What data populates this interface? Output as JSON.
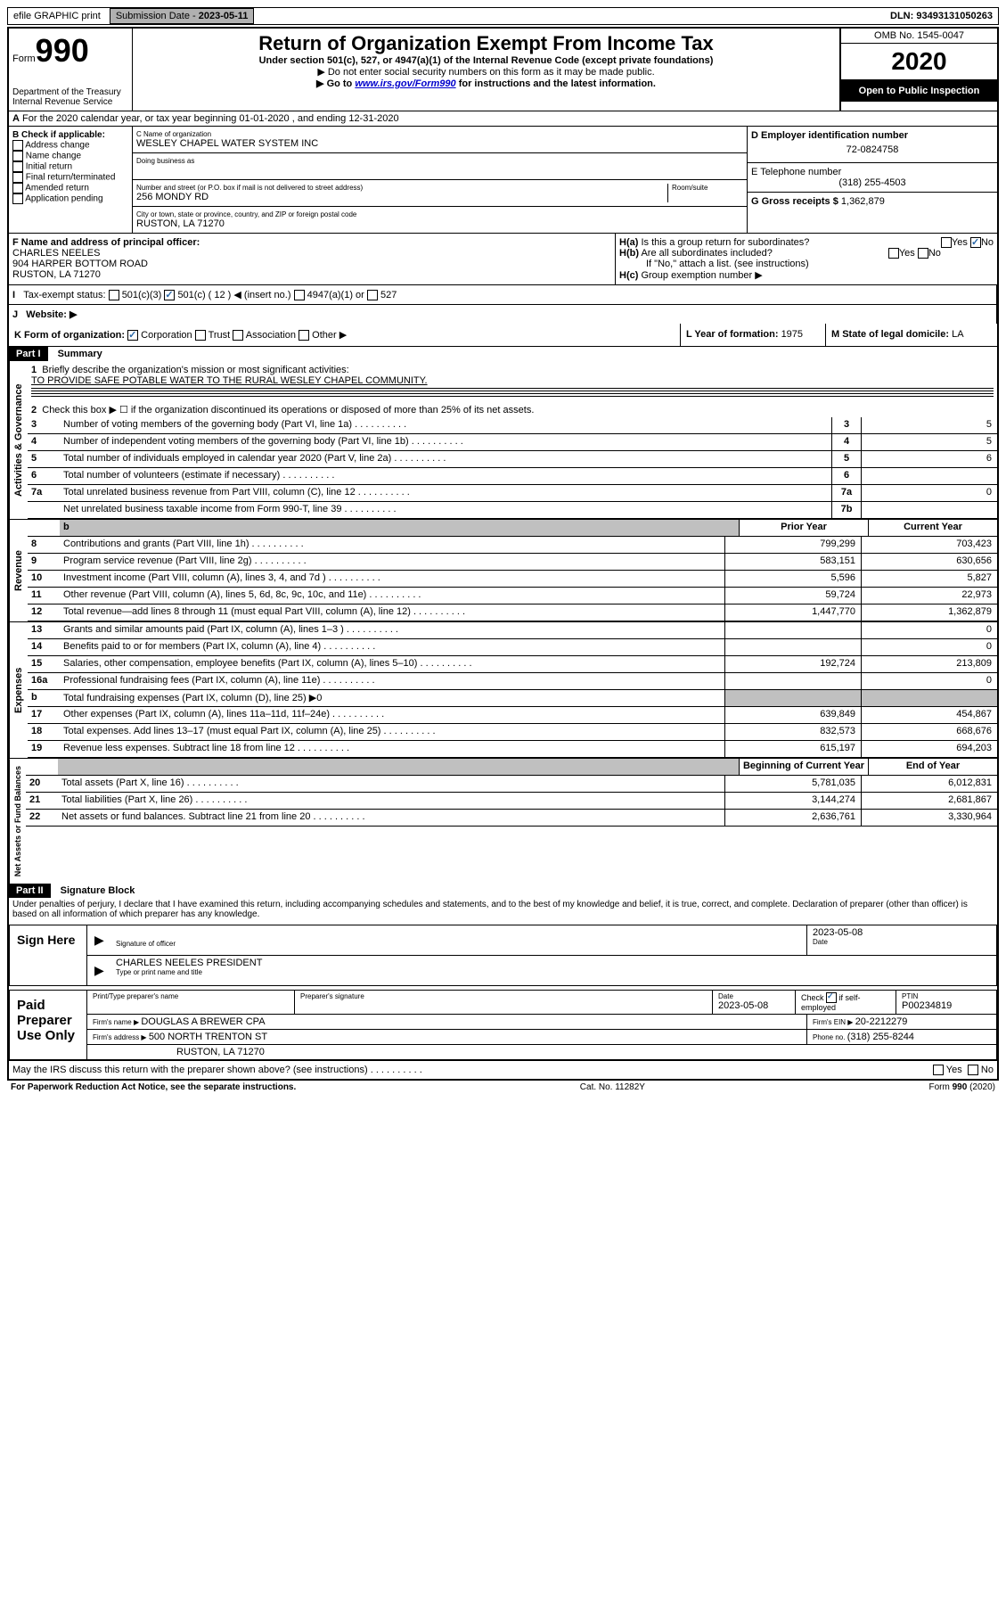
{
  "topbar": {
    "efile": "efile GRAPHIC print",
    "submission_label": "Submission Date - ",
    "submission_date": "2023-05-11",
    "dln_label": "DLN: ",
    "dln": "93493131050263"
  },
  "header": {
    "form_label": "Form",
    "form_no": "990",
    "dept": "Department of the Treasury\nInternal Revenue Service",
    "title": "Return of Organization Exempt From Income Tax",
    "subtitle": "Under section 501(c), 527, or 4947(a)(1) of the Internal Revenue Code (except private foundations)",
    "note1": "▶ Do not enter social security numbers on this form as it may be made public.",
    "note2_pre": "▶ Go to ",
    "note2_link": "www.irs.gov/Form990",
    "note2_post": " for instructions and the latest information.",
    "omb": "OMB No. 1545-0047",
    "year": "2020",
    "public": "Open to Public Inspection"
  },
  "periodA": "For the 2020 calendar year, or tax year beginning 01-01-2020    , and ending 12-31-2020",
  "boxB": {
    "label": "B Check if applicable:",
    "items": [
      "Address change",
      "Name change",
      "Initial return",
      "Final return/terminated",
      "Amended return",
      "Application pending"
    ]
  },
  "boxC": {
    "name_label": "C Name of organization",
    "name": "WESLEY CHAPEL WATER SYSTEM INC",
    "dba_label": "Doing business as",
    "addr_label": "Number and street (or P.O. box if mail is not delivered to street address)",
    "room_label": "Room/suite",
    "addr": "256 MONDY RD",
    "city_label": "City or town, state or province, country, and ZIP or foreign postal code",
    "city": "RUSTON, LA  71270"
  },
  "boxD": {
    "label": "D Employer identification number",
    "value": "72-0824758"
  },
  "boxE": {
    "label": "E Telephone number",
    "value": "(318) 255-4503"
  },
  "boxG": {
    "label": "G Gross receipts $ ",
    "value": "1,362,879"
  },
  "boxF": {
    "label": "F  Name and address of principal officer:",
    "name": "CHARLES NEELES",
    "addr1": "904 HARPER BOTTOM ROAD",
    "addr2": "RUSTON, LA  71270"
  },
  "boxH": {
    "a": "Is this a group return for subordinates?",
    "b": "Are all subordinates included?",
    "b_note": "If \"No,\" attach a list. (see instructions)",
    "c": "Group exemption number ▶"
  },
  "boxI": {
    "label": "Tax-exempt status:",
    "opts": [
      "501(c)(3)",
      "501(c) ( 12 ) ◀ (insert no.)",
      "4947(a)(1) or",
      "527"
    ]
  },
  "boxJ": "Website: ▶",
  "boxK": {
    "label": "K Form of organization:",
    "opts": [
      "Corporation",
      "Trust",
      "Association",
      "Other ▶"
    ]
  },
  "boxL": {
    "label": "L Year of formation: ",
    "value": "1975"
  },
  "boxM": {
    "label": "M State of legal domicile: ",
    "value": "LA"
  },
  "part1": {
    "header": "Part I",
    "title": "Summary",
    "q1": "Briefly describe the organization's mission or most significant activities:",
    "q1_ans": "TO PROVIDE SAFE POTABLE WATER TO THE RURAL WESLEY CHAPEL COMMUNITY.",
    "q2": "Check this box ▶ ☐  if the organization discontinued its operations or disposed of more than 25% of its net assets.",
    "governance_label": "Activities & Governance",
    "revenue_label": "Revenue",
    "expenses_label": "Expenses",
    "netassets_label": "Net Assets or Fund Balances",
    "col_prior": "Prior Year",
    "col_current": "Current Year",
    "col_begin": "Beginning of Current Year",
    "col_end": "End of Year",
    "rows_gov": [
      {
        "n": "3",
        "label": "Number of voting members of the governing body (Part VI, line 1a)",
        "box": "3",
        "val": "5"
      },
      {
        "n": "4",
        "label": "Number of independent voting members of the governing body (Part VI, line 1b)",
        "box": "4",
        "val": "5"
      },
      {
        "n": "5",
        "label": "Total number of individuals employed in calendar year 2020 (Part V, line 2a)",
        "box": "5",
        "val": "6"
      },
      {
        "n": "6",
        "label": "Total number of volunteers (estimate if necessary)",
        "box": "6",
        "val": ""
      },
      {
        "n": "7a",
        "label": "Total unrelated business revenue from Part VIII, column (C), line 12",
        "box": "7a",
        "val": "0"
      },
      {
        "n": "",
        "label": "Net unrelated business taxable income from Form 990-T, line 39",
        "box": "7b",
        "val": ""
      }
    ],
    "rows_rev": [
      {
        "n": "8",
        "label": "Contributions and grants (Part VIII, line 1h)",
        "prior": "799,299",
        "curr": "703,423"
      },
      {
        "n": "9",
        "label": "Program service revenue (Part VIII, line 2g)",
        "prior": "583,151",
        "curr": "630,656"
      },
      {
        "n": "10",
        "label": "Investment income (Part VIII, column (A), lines 3, 4, and 7d )",
        "prior": "5,596",
        "curr": "5,827"
      },
      {
        "n": "11",
        "label": "Other revenue (Part VIII, column (A), lines 5, 6d, 8c, 9c, 10c, and 11e)",
        "prior": "59,724",
        "curr": "22,973"
      },
      {
        "n": "12",
        "label": "Total revenue—add lines 8 through 11 (must equal Part VIII, column (A), line 12)",
        "prior": "1,447,770",
        "curr": "1,362,879"
      }
    ],
    "rows_exp": [
      {
        "n": "13",
        "label": "Grants and similar amounts paid (Part IX, column (A), lines 1–3 )",
        "prior": "",
        "curr": "0"
      },
      {
        "n": "14",
        "label": "Benefits paid to or for members (Part IX, column (A), line 4)",
        "prior": "",
        "curr": "0"
      },
      {
        "n": "15",
        "label": "Salaries, other compensation, employee benefits (Part IX, column (A), lines 5–10)",
        "prior": "192,724",
        "curr": "213,809"
      },
      {
        "n": "16a",
        "label": "Professional fundraising fees (Part IX, column (A), line 11e)",
        "prior": "",
        "curr": "0"
      },
      {
        "n": "b",
        "label": "Total fundraising expenses (Part IX, column (D), line 25) ▶0",
        "prior": "—shaded—",
        "curr": "—shaded—"
      },
      {
        "n": "17",
        "label": "Other expenses (Part IX, column (A), lines 11a–11d, 11f–24e)",
        "prior": "639,849",
        "curr": "454,867"
      },
      {
        "n": "18",
        "label": "Total expenses. Add lines 13–17 (must equal Part IX, column (A), line 25)",
        "prior": "832,573",
        "curr": "668,676"
      },
      {
        "n": "19",
        "label": "Revenue less expenses. Subtract line 18 from line 12",
        "prior": "615,197",
        "curr": "694,203"
      }
    ],
    "rows_net": [
      {
        "n": "20",
        "label": "Total assets (Part X, line 16)",
        "prior": "5,781,035",
        "curr": "6,012,831"
      },
      {
        "n": "21",
        "label": "Total liabilities (Part X, line 26)",
        "prior": "3,144,274",
        "curr": "2,681,867"
      },
      {
        "n": "22",
        "label": "Net assets or fund balances. Subtract line 21 from line 20",
        "prior": "2,636,761",
        "curr": "3,330,964"
      }
    ]
  },
  "part2": {
    "header": "Part II",
    "title": "Signature Block",
    "perjury": "Under penalties of perjury, I declare that I have examined this return, including accompanying schedules and statements, and to the best of my knowledge and belief, it is true, correct, and complete. Declaration of preparer (other than officer) is based on all information of which preparer has any knowledge."
  },
  "sign": {
    "label": "Sign Here",
    "sig_officer": "Signature of officer",
    "date": "2023-05-08",
    "date_label": "Date",
    "name": "CHARLES NEELES  PRESIDENT",
    "name_label": "Type or print name and title"
  },
  "preparer": {
    "label": "Paid Preparer Use Only",
    "print_name_label": "Print/Type preparer's name",
    "sig_label": "Preparer's signature",
    "date_label": "Date",
    "date": "2023-05-08",
    "check_label": "Check ☑ if self-employed",
    "ptin_label": "PTIN",
    "ptin": "P00234819",
    "firm_name_label": "Firm's name    ▶ ",
    "firm_name": "DOUGLAS A BREWER CPA",
    "firm_ein_label": "Firm's EIN ▶ ",
    "firm_ein": "20-2212279",
    "firm_addr_label": "Firm's address ▶ ",
    "firm_addr1": "500 NORTH TRENTON ST",
    "firm_addr2": "RUSTON, LA  71270",
    "phone_label": "Phone no. ",
    "phone": "(318) 255-8244"
  },
  "discuss": "May the IRS discuss this return with the preparer shown above? (see instructions)",
  "footer": {
    "left": "For Paperwork Reduction Act Notice, see the separate instructions.",
    "mid": "Cat. No. 11282Y",
    "right": "Form 990 (2020)"
  }
}
